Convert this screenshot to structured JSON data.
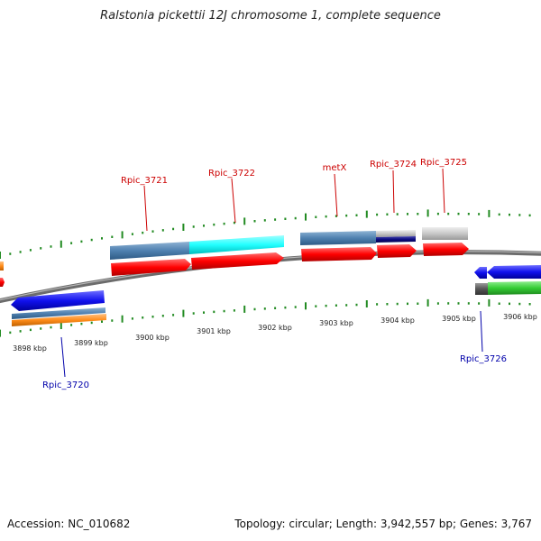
{
  "title": "Ralstonia pickettii 12J chromosome 1, complete sequence",
  "accession": "Accession: NC_010682",
  "summary": "Topology: circular; Length: 3,942,557 bp; Genes: 3,767",
  "ticks": [
    "3898 kbp",
    "3899 kbp",
    "3900 kbp",
    "3901 kbp",
    "3902 kbp",
    "3903 kbp",
    "3904 kbp",
    "3905 kbp",
    "3906 kbp"
  ],
  "genes": [
    {
      "name": "Rpic_3720",
      "strand": "minus",
      "color": "#0000aa"
    },
    {
      "name": "Rpic_3721",
      "strand": "plus",
      "color": "#cc0000"
    },
    {
      "name": "Rpic_3722",
      "strand": "plus",
      "color": "#cc0000"
    },
    {
      "name": "metX",
      "strand": "plus",
      "color": "#cc0000"
    },
    {
      "name": "Rpic_3724",
      "strand": "plus",
      "color": "#cc0000"
    },
    {
      "name": "Rpic_3725",
      "strand": "plus",
      "color": "#cc0000"
    },
    {
      "name": "Rpic_3726",
      "strand": "minus",
      "color": "#0000aa"
    }
  ],
  "colors": {
    "cds_plus": "#ff0000",
    "cds_minus": "#1111ee",
    "gene_steel": "#4f81b0",
    "gene_cyan": "#22ffff",
    "gene_navy": "#0a0a80",
    "gene_gray": "#c8c8c8",
    "gene_orange": "#ff8c1a",
    "gene_green": "#33cc33",
    "backbone": "#808080",
    "tick": "#228b22"
  }
}
